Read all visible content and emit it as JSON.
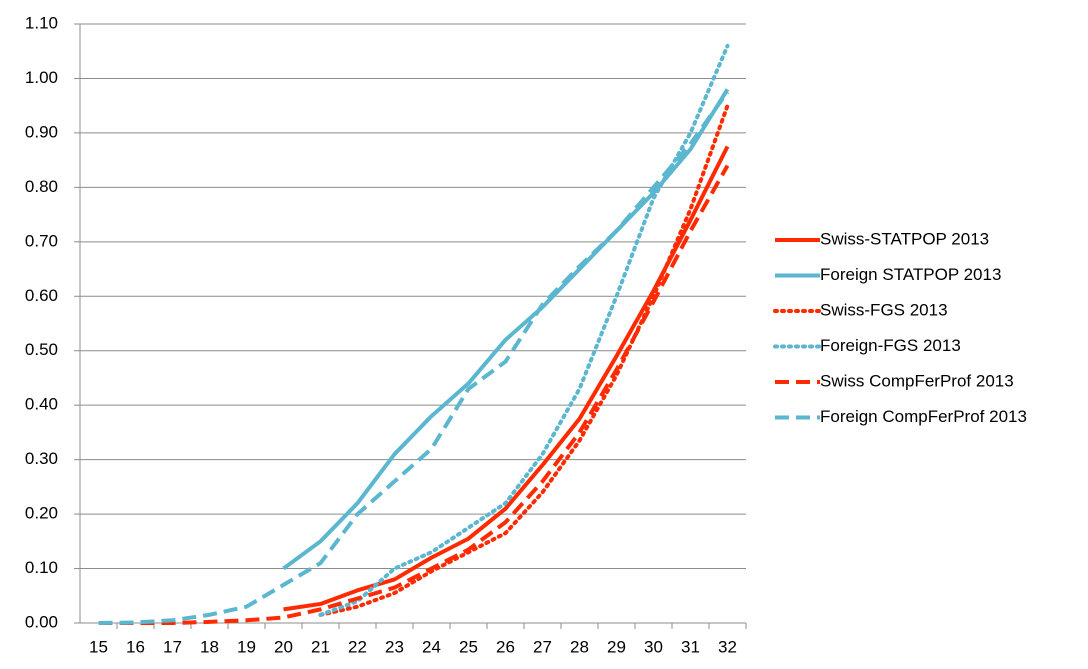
{
  "chart_data": {
    "type": "line",
    "categories": [
      "15",
      "16",
      "17",
      "18",
      "19",
      "20",
      "21",
      "22",
      "23",
      "24",
      "25",
      "26",
      "27",
      "28",
      "29",
      "30",
      "31",
      "32"
    ],
    "series": [
      {
        "name": "Swiss-STATPOP 2013",
        "color": "#ff2a00",
        "dash": "solid",
        "values": [
          null,
          null,
          null,
          null,
          null,
          0.025,
          0.035,
          0.06,
          0.08,
          0.12,
          0.155,
          0.21,
          0.29,
          0.375,
          0.49,
          0.61,
          0.74,
          0.875
        ]
      },
      {
        "name": "Foreign STATPOP 2013",
        "color": "#5bb6d0",
        "dash": "solid",
        "values": [
          null,
          null,
          null,
          null,
          null,
          0.1,
          0.15,
          0.22,
          0.31,
          0.38,
          0.44,
          0.52,
          0.58,
          0.65,
          0.72,
          0.79,
          0.87,
          0.98
        ]
      },
      {
        "name": "Swiss-FGS 2013",
        "color": "#ff2a00",
        "dash": "dot",
        "values": [
          null,
          null,
          null,
          null,
          null,
          null,
          0.015,
          0.03,
          0.055,
          0.095,
          0.13,
          0.165,
          0.24,
          0.335,
          0.455,
          0.6,
          0.76,
          0.95
        ]
      },
      {
        "name": "Foreign-FGS 2013",
        "color": "#5bb6d0",
        "dash": "dot",
        "values": [
          null,
          null,
          null,
          null,
          null,
          null,
          0.015,
          0.04,
          0.1,
          0.13,
          0.175,
          0.22,
          0.31,
          0.43,
          0.6,
          0.78,
          0.9,
          1.06
        ]
      },
      {
        "name": "Swiss CompFerProf 2013",
        "color": "#ff2a00",
        "dash": "dash",
        "values": [
          0,
          0,
          0,
          0.002,
          0.005,
          0.01,
          0.025,
          0.045,
          0.065,
          0.1,
          0.135,
          0.185,
          0.26,
          0.35,
          0.465,
          0.59,
          0.72,
          0.84
        ]
      },
      {
        "name": "Foreign CompFerProf 2013",
        "color": "#5bb6d0",
        "dash": "dash",
        "values": [
          0,
          0.001,
          0.005,
          0.015,
          0.03,
          0.07,
          0.11,
          0.2,
          0.26,
          0.32,
          0.43,
          0.48,
          0.585,
          0.655,
          0.72,
          0.8,
          0.88,
          0.975
        ]
      }
    ],
    "ylim": [
      0,
      1.1
    ],
    "yticks": [
      {
        "value": 0,
        "label": "0.00"
      },
      {
        "value": 0.1,
        "label": "0.10"
      },
      {
        "value": 0.2,
        "label": "0.20"
      },
      {
        "value": 0.3,
        "label": "0.30"
      },
      {
        "value": 0.4,
        "label": "0.40"
      },
      {
        "value": 0.5,
        "label": "0.50"
      },
      {
        "value": 0.6,
        "label": "0.60"
      },
      {
        "value": 0.7,
        "label": "0.70"
      },
      {
        "value": 0.8,
        "label": "0.80"
      },
      {
        "value": 0.9,
        "label": "0.90"
      },
      {
        "value": 1.0,
        "label": "1.00"
      },
      {
        "value": 1.1,
        "label": "1.10"
      }
    ],
    "grid": true,
    "legend": "right"
  }
}
